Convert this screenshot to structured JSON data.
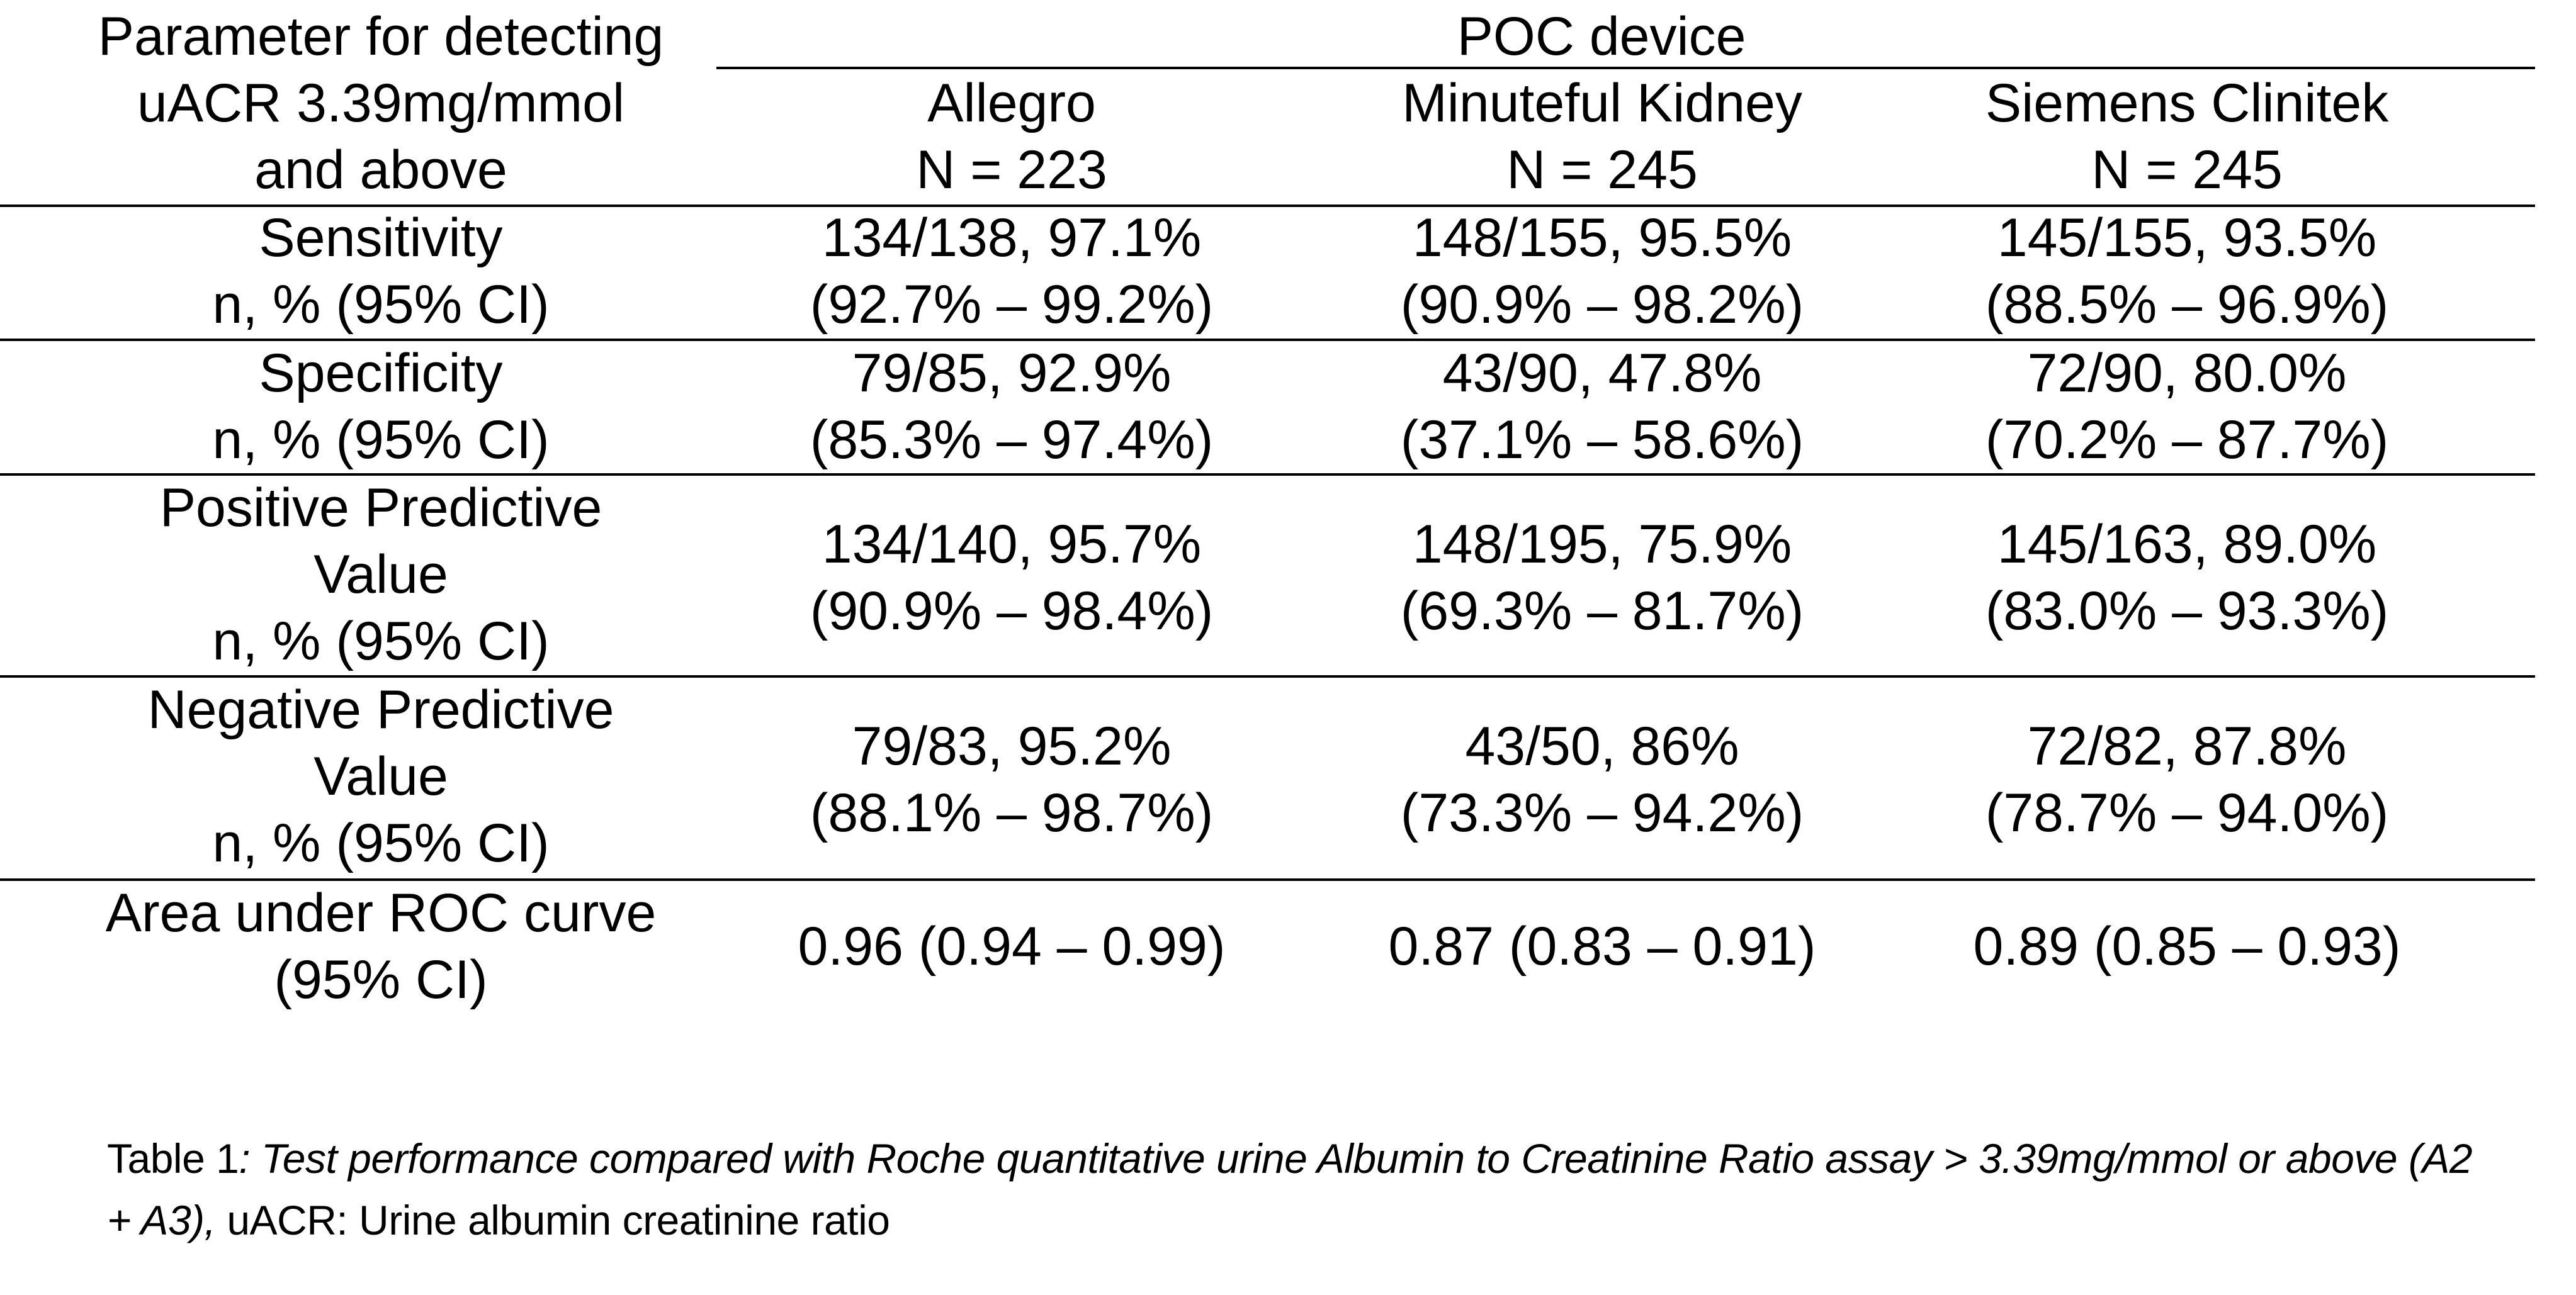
{
  "header": {
    "param_col_lines": [
      "Parameter for detecting",
      "uACR 3.39mg/mmol",
      "and above"
    ],
    "group_title": "POC device",
    "devices": [
      {
        "name": "Allegro",
        "n": "N = 223"
      },
      {
        "name": "Minuteful Kidney",
        "n": "N = 245"
      },
      {
        "name": "Siemens Clinitek",
        "n": "N = 245"
      }
    ]
  },
  "rows": [
    {
      "label_lines": [
        "Sensitivity",
        "n, % (95% CI)"
      ],
      "cells": [
        [
          "134/138, 97.1%",
          "(92.7% – 99.2%)"
        ],
        [
          "148/155, 95.5%",
          "(90.9% – 98.2%)"
        ],
        [
          "145/155, 93.5%",
          "(88.5% – 96.9%)"
        ]
      ]
    },
    {
      "label_lines": [
        "Specificity",
        "n, % (95% CI)"
      ],
      "cells": [
        [
          "79/85, 92.9%",
          "(85.3% – 97.4%)"
        ],
        [
          "43/90, 47.8%",
          "(37.1% – 58.6%)"
        ],
        [
          "72/90, 80.0%",
          "(70.2% – 87.7%)"
        ]
      ]
    },
    {
      "label_lines": [
        "Positive Predictive",
        "Value",
        "n, % (95% CI)"
      ],
      "cells": [
        [
          "134/140, 95.7%",
          "(90.9% – 98.4%)"
        ],
        [
          "148/195, 75.9%",
          "(69.3% – 81.7%)"
        ],
        [
          "145/163, 89.0%",
          "(83.0% – 93.3%)"
        ]
      ]
    },
    {
      "label_lines": [
        "Negative Predictive",
        "Value",
        "n, % (95% CI)"
      ],
      "cells": [
        [
          "79/83, 95.2%",
          "(88.1% – 98.7%)"
        ],
        [
          "43/50, 86%",
          "(73.3% – 94.2%)"
        ],
        [
          "72/82, 87.8%",
          "(78.7% – 94.0%)"
        ]
      ]
    },
    {
      "label_lines": [
        "Area under ROC curve",
        "(95% CI)"
      ],
      "cells": [
        [
          "0.96 (0.94 – 0.99)"
        ],
        [
          "0.87 (0.83 – 0.91)"
        ],
        [
          "0.89 (0.85 – 0.93)"
        ]
      ]
    }
  ],
  "caption": {
    "prefix": "Table 1",
    "italic_text": ": Test performance compared with Roche quantitative urine Albumin to Creatinine Ratio assay > 3.39mg/mmol or above (A2 + A3),",
    "suffix": " uACR: Urine albumin creatinine ratio"
  }
}
